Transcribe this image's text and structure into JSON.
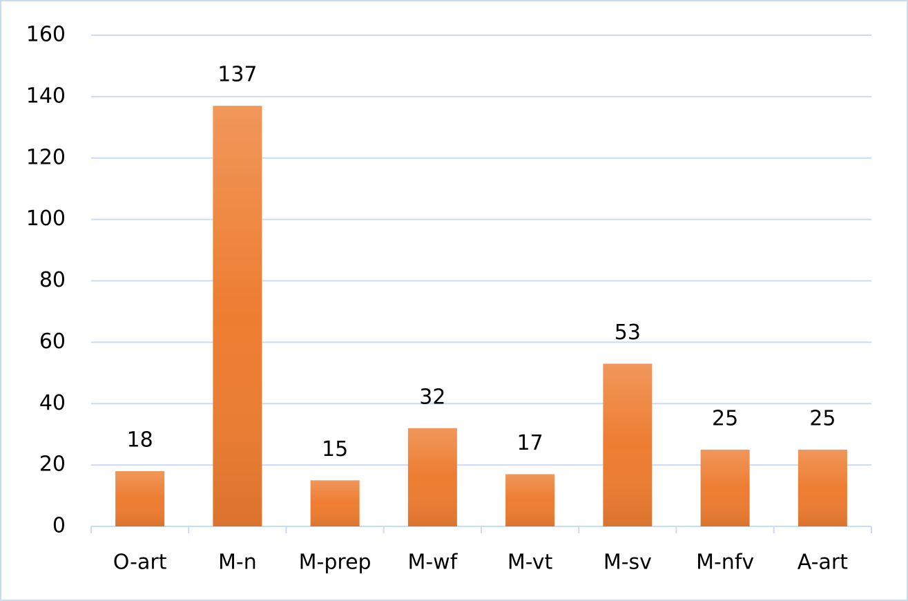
{
  "chart_data": {
    "type": "bar",
    "categories": [
      "O-art",
      "M-n",
      "M-prep",
      "M-wf",
      "M-vt",
      "M-sv",
      "M-nfv",
      "A-art"
    ],
    "values": [
      18,
      137,
      15,
      32,
      17,
      53,
      25,
      25
    ],
    "color": "#ed7d31",
    "ylim": [
      0,
      160
    ],
    "yticks": [
      0,
      20,
      40,
      60,
      80,
      100,
      120,
      140,
      160
    ],
    "grid": true
  }
}
